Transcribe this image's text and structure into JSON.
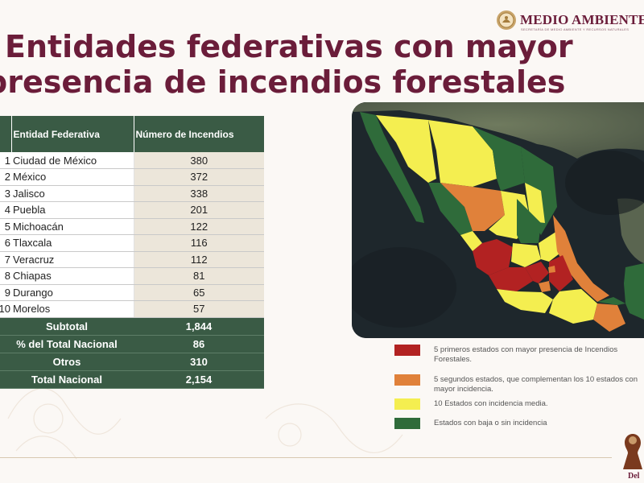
{
  "slide": {
    "title_line1": "Entidades federativas con mayor",
    "title_line2": "presencia de incendios forestales"
  },
  "brand": {
    "name": "MEDIO AMBIENTE",
    "subtitle": "SECRETARÍA DE MEDIO AMBIENTE Y RECURSOS NATURALES",
    "color": "#6b1d3a"
  },
  "table": {
    "headers": {
      "rank": "",
      "entity": "Entidad Federativa",
      "count": "Número de Incendios"
    },
    "rows": [
      {
        "rank": "1",
        "entity": "Ciudad de México",
        "count": "380"
      },
      {
        "rank": "2",
        "entity": "México",
        "count": "372"
      },
      {
        "rank": "3",
        "entity": "Jalisco",
        "count": "338"
      },
      {
        "rank": "4",
        "entity": "Puebla",
        "count": "201"
      },
      {
        "rank": "5",
        "entity": "Michoacán",
        "count": "122"
      },
      {
        "rank": "6",
        "entity": "Tlaxcala",
        "count": "116"
      },
      {
        "rank": "7",
        "entity": "Veracruz",
        "count": "112"
      },
      {
        "rank": "8",
        "entity": "Chiapas",
        "count": "81"
      },
      {
        "rank": "9",
        "entity": "Durango",
        "count": "65"
      },
      {
        "rank": "10",
        "entity": "Morelos",
        "count": "57"
      }
    ],
    "summary": [
      {
        "label": "Subtotal",
        "value": "1,844"
      },
      {
        "label": "% del Total Nacional",
        "value": "86"
      },
      {
        "label": "Otros",
        "value": "310"
      },
      {
        "label": "Total Nacional",
        "value": "2,154"
      }
    ],
    "header_color": "#3a5b45",
    "value_cell_color": "#ece6da"
  },
  "legend": [
    {
      "color": "#b22222",
      "text": "5 primeros estados con mayor presencia de Incendios Forestales."
    },
    {
      "color": "#e0813a",
      "text": "5 segundos estados, que complementan los 10 estados con mayor incidencia."
    },
    {
      "color": "#f4ee50",
      "text": "10 Estados con incidencia media."
    },
    {
      "color": "#2f6b3a",
      "text": "Estados con baja o sin incidencia"
    }
  ],
  "footer": {
    "corner_text": "Del"
  }
}
